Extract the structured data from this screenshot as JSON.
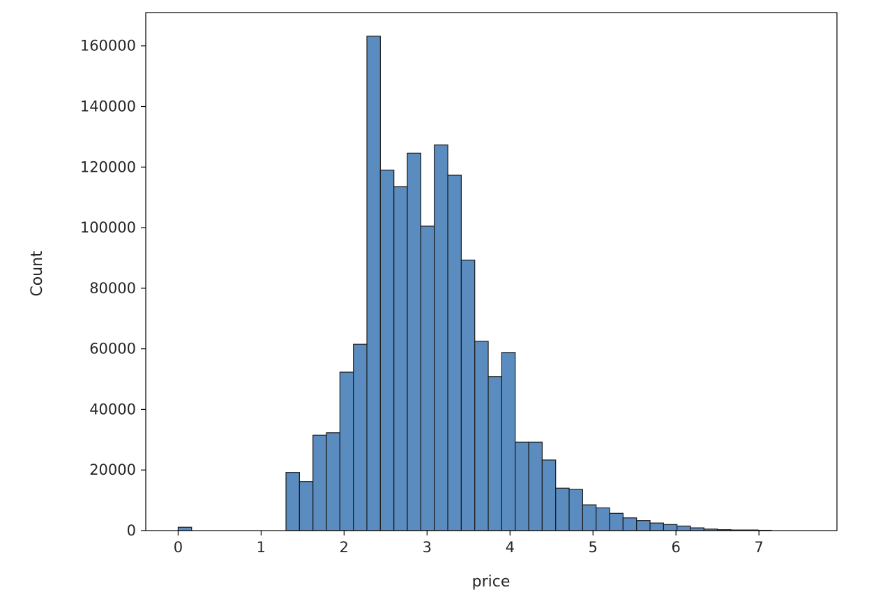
{
  "chart_data": {
    "type": "bar",
    "subtype": "histogram",
    "xlabel": "price",
    "ylabel": "Count",
    "xlim": [
      -0.39,
      7.94
    ],
    "ylim": [
      0,
      171000
    ],
    "xticks": [
      "0",
      "1",
      "2",
      "3",
      "4",
      "5",
      "6",
      "7"
    ],
    "yticks": [
      "0",
      "20000",
      "40000",
      "60000",
      "80000",
      "100000",
      "120000",
      "140000",
      "160000"
    ],
    "bar_color": "#5b8cbf",
    "edge_color": "#1a1a1a",
    "bin_width": 0.1625,
    "bin_start": -0.0,
    "counts": [
      1100,
      0,
      0,
      0,
      0,
      0,
      0,
      0,
      19200,
      16200,
      31500,
      32300,
      52300,
      61500,
      163200,
      119000,
      113500,
      124600,
      100500,
      127300,
      117300,
      89300,
      62500,
      50800,
      58800,
      29200,
      29200,
      23300,
      14000,
      13600,
      8500,
      7500,
      5700,
      4200,
      3300,
      2500,
      2000,
      1500,
      900,
      500,
      300,
      200,
      200,
      100
    ]
  }
}
